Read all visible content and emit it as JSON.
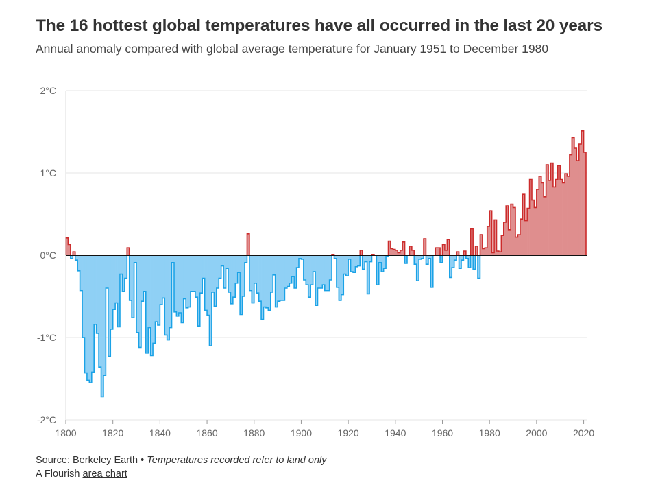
{
  "header": {
    "title": "The 16 hottest global temperatures have all occurred in the last 20 years",
    "subtitle": "Annual anomaly compared with global average temperature for January 1951 to December 1980"
  },
  "footer": {
    "source_prefix": "Source:",
    "source_link": "Berkeley Earth",
    "separator": "•",
    "note": "Temperatures recorded refer to land only",
    "credit_prefix": "A Flourish",
    "credit_link": "area chart"
  },
  "colors": {
    "positive_fill": "#df8e8e",
    "positive_stroke": "#cc2b2b",
    "negative_fill": "#8fd0f5",
    "negative_stroke": "#1aa2e6"
  },
  "chart_data": {
    "type": "area",
    "title": "",
    "xlabel": "",
    "ylabel": "",
    "xlim": [
      1800,
      2021
    ],
    "ylim": [
      -2,
      2
    ],
    "grid": true,
    "x_ticks": [
      "1800",
      "1820",
      "1840",
      "1860",
      "1880",
      "1900",
      "1920",
      "1940",
      "1960",
      "1980",
      "2000",
      "2020"
    ],
    "y_ticks": [
      "2°C",
      "1°C",
      "0°C",
      "-1°C",
      "-2°C"
    ],
    "start_year": 1800,
    "values": [
      0.21,
      0.13,
      -0.04,
      0.04,
      -0.06,
      -0.19,
      -0.43,
      -1.0,
      -1.43,
      -1.52,
      -1.55,
      -1.42,
      -0.84,
      -0.95,
      -1.36,
      -1.72,
      -1.46,
      -0.4,
      -1.23,
      -0.9,
      -0.66,
      -0.58,
      -0.87,
      -0.23,
      -0.44,
      -0.28,
      0.09,
      -0.55,
      -0.76,
      -0.09,
      -0.94,
      -1.12,
      -0.56,
      -0.44,
      -1.19,
      -0.88,
      -1.22,
      -1.07,
      -0.81,
      -0.85,
      -0.6,
      -0.52,
      -0.97,
      -1.03,
      -0.88,
      -0.09,
      -0.69,
      -0.74,
      -0.7,
      -0.82,
      -0.53,
      -0.64,
      -0.63,
      -0.44,
      -0.44,
      -0.51,
      -0.86,
      -0.46,
      -0.28,
      -0.67,
      -0.73,
      -1.1,
      -0.45,
      -0.62,
      -0.4,
      -0.28,
      -0.13,
      -0.4,
      -0.16,
      -0.45,
      -0.59,
      -0.51,
      -0.34,
      -0.21,
      -0.72,
      -0.5,
      -0.09,
      0.26,
      -0.43,
      -0.58,
      -0.34,
      -0.46,
      -0.56,
      -0.78,
      -0.63,
      -0.64,
      -0.67,
      -0.45,
      -0.24,
      -0.63,
      -0.56,
      -0.55,
      -0.55,
      -0.4,
      -0.38,
      -0.34,
      -0.26,
      -0.4,
      -0.15,
      -0.04,
      -0.05,
      -0.3,
      -0.36,
      -0.51,
      -0.36,
      -0.2,
      -0.61,
      -0.4,
      -0.4,
      -0.36,
      -0.43,
      -0.43,
      -0.3,
      0.01,
      -0.04,
      -0.39,
      -0.55,
      -0.48,
      -0.23,
      -0.25,
      -0.05,
      -0.2,
      -0.21,
      -0.14,
      -0.13,
      0.06,
      -0.17,
      -0.08,
      -0.47,
      -0.08,
      0.01,
      0.0,
      -0.36,
      -0.09,
      -0.2,
      -0.16,
      -0.01,
      0.17,
      0.08,
      0.07,
      0.06,
      0.03,
      0.06,
      0.16,
      -0.1,
      0.0,
      0.11,
      0.06,
      -0.11,
      -0.31,
      -0.05,
      -0.04,
      0.2,
      -0.11,
      -0.04,
      -0.39,
      0.0,
      0.09,
      0.09,
      -0.09,
      0.13,
      0.06,
      0.19,
      -0.27,
      -0.15,
      -0.06,
      0.04,
      -0.16,
      -0.06,
      0.05,
      -0.04,
      -0.15,
      0.32,
      -0.17,
      0.11,
      -0.28,
      0.25,
      0.08,
      0.09,
      0.35,
      0.54,
      0.03,
      0.43,
      0.05,
      0.04,
      0.24,
      0.4,
      0.6,
      0.31,
      0.62,
      0.58,
      0.22,
      0.25,
      0.44,
      0.74,
      0.42,
      0.57,
      0.92,
      0.67,
      0.58,
      0.8,
      0.96,
      0.88,
      0.71,
      1.1,
      0.91,
      1.12,
      0.83,
      0.92,
      1.09,
      0.92,
      0.88,
      0.99,
      0.96,
      1.22,
      1.43,
      1.3,
      1.15,
      1.35,
      1.51,
      1.25
    ]
  }
}
